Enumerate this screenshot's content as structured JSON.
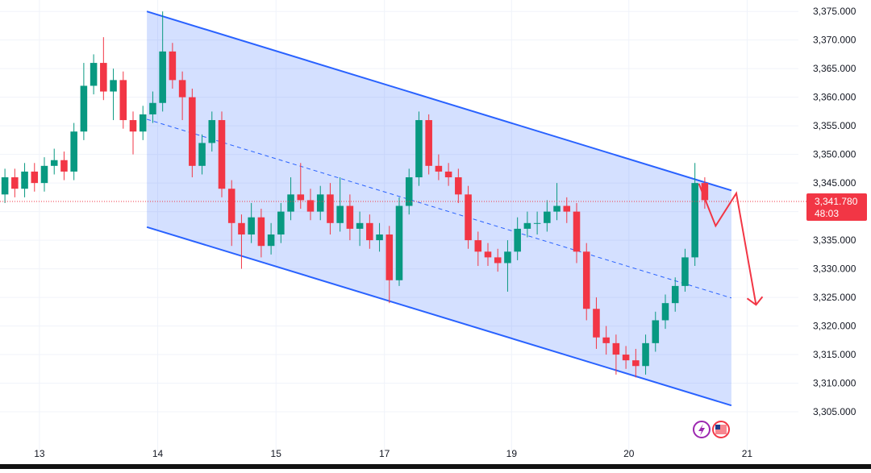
{
  "chart_data": {
    "type": "candlestick",
    "x": [
      0,
      1,
      2,
      3,
      4,
      5,
      6,
      7,
      8,
      9,
      10,
      11,
      12,
      13,
      14,
      15,
      16,
      17,
      18,
      19,
      20,
      21,
      22,
      23,
      24,
      25,
      26,
      27,
      28,
      29,
      30,
      31,
      32,
      33,
      34,
      35,
      36,
      37,
      38,
      39,
      40,
      41,
      42,
      43,
      44,
      45,
      46,
      47,
      48,
      49,
      50,
      51,
      52,
      53,
      54,
      55,
      56,
      57,
      58,
      59,
      60,
      61,
      62,
      63,
      64,
      65,
      66,
      67,
      68,
      69,
      70,
      71
    ],
    "open": [
      3343,
      3346,
      3344,
      3347,
      3345,
      3348,
      3349,
      3347,
      3354,
      3362,
      3366,
      3361,
      3363,
      3356,
      3354,
      3357,
      3359,
      3368,
      3363,
      3360,
      3348,
      3352,
      3356,
      3344,
      3338,
      3336,
      3339,
      3334,
      3336,
      3340,
      3343,
      3342,
      3340,
      3343,
      3338,
      3341,
      3337,
      3338,
      3335,
      3336,
      3328,
      3341,
      3346,
      3356,
      3348,
      3347,
      3346,
      3343,
      3335,
      3333,
      3332,
      3331,
      3333,
      3337,
      3338,
      3338,
      3340,
      3341,
      3340,
      3333,
      3323,
      3318,
      3317,
      3315,
      3314,
      3313,
      3317,
      3321,
      3324,
      3327,
      3332,
      3345
    ],
    "high": [
      3347.5,
      3347.5,
      3348.5,
      3348.5,
      3349.5,
      3351,
      3350.5,
      3355.5,
      3366,
      3367.5,
      3370.5,
      3365,
      3364.5,
      3357.5,
      3358.5,
      3361,
      3375,
      3369.5,
      3364.5,
      3361.5,
      3353.5,
      3357.5,
      3357.5,
      3345.5,
      3339.5,
      3341.5,
      3340.5,
      3338,
      3341.5,
      3346,
      3348.5,
      3344,
      3344.5,
      3345,
      3346,
      3343,
      3340,
      3339.5,
      3338,
      3337.5,
      3342.5,
      3347.5,
      3357.5,
      3357,
      3350,
      3348.5,
      3347.5,
      3344.5,
      3336.5,
      3334.5,
      3333.5,
      3335,
      3339,
      3340,
      3340,
      3342,
      3345,
      3342.5,
      3341.5,
      3334.5,
      3325,
      3320,
      3318.5,
      3316.5,
      3316,
      3318.5,
      3322.5,
      3325.5,
      3328.5,
      3333.5,
      3348.5,
      3346
    ],
    "low": [
      3341.5,
      3342.5,
      3342.5,
      3343.5,
      3343.5,
      3346.5,
      3345.5,
      3345.5,
      3352.5,
      3360.5,
      3359.5,
      3356,
      3354.5,
      3350,
      3352.5,
      3355.5,
      3357.5,
      3361.5,
      3356,
      3346,
      3346.5,
      3350.5,
      3342.5,
      3334,
      3330,
      3334.5,
      3332,
      3332.5,
      3334.5,
      3338.5,
      3340.5,
      3338.5,
      3338.5,
      3336,
      3336.5,
      3335,
      3334,
      3333.5,
      3333,
      3324,
      3327,
      3339.5,
      3344.5,
      3346.5,
      3345.5,
      3344.5,
      3341.5,
      3333.5,
      3330.5,
      3330.5,
      3329.5,
      3326,
      3331.5,
      3335.5,
      3336,
      3336.5,
      3338.5,
      3338,
      3331,
      3321,
      3316,
      3315,
      3311.5,
      3312.5,
      3311,
      3311.5,
      3315.5,
      3319.5,
      3322.5,
      3326,
      3330.5,
      3340.5
    ],
    "close": [
      3346,
      3344,
      3347,
      3345,
      3348,
      3349,
      3347,
      3354,
      3362,
      3366,
      3361,
      3363,
      3356,
      3354,
      3357,
      3359,
      3368,
      3363,
      3360,
      3348,
      3352,
      3356,
      3344,
      3338,
      3336,
      3339,
      3334,
      3336,
      3340,
      3343,
      3342,
      3340,
      3343,
      3338,
      3341,
      3337,
      3338,
      3335,
      3336,
      3328,
      3341,
      3346,
      3356,
      3348,
      3347,
      3346,
      3343,
      3335,
      3333,
      3332,
      3331,
      3333,
      3337,
      3338,
      3338,
      3340,
      3341,
      3340,
      3333,
      3323,
      3318,
      3317,
      3315,
      3314,
      3313,
      3317,
      3321,
      3324,
      3327,
      3332,
      3345,
      3342
    ],
    "up_color": "#089981",
    "down_color": "#f23645",
    "xlim": [
      -0.5,
      80.5
    ],
    "xticks": [
      {
        "value": 3.5,
        "label": "13"
      },
      {
        "value": 15.5,
        "label": "14"
      },
      {
        "value": 27.5,
        "label": "15"
      },
      {
        "value": 38.5,
        "label": "17"
      },
      {
        "value": 51.4,
        "label": "19"
      },
      {
        "value": 63.3,
        "label": "20"
      },
      {
        "value": 75.3,
        "label": "21"
      }
    ],
    "ylim": [
      3298.1,
      3377
    ],
    "yticks": [
      {
        "value": 3305,
        "label": "3,305.000"
      },
      {
        "value": 3310,
        "label": "3,310.000"
      },
      {
        "value": 3315,
        "label": "3,315.000"
      },
      {
        "value": 3320,
        "label": "3,320.000"
      },
      {
        "value": 3325,
        "label": "3,325.000"
      },
      {
        "value": 3330,
        "label": "3,330.000"
      },
      {
        "value": 3335,
        "label": "3,335.000"
      },
      {
        "value": 3340,
        "label": "3,340.000"
      },
      {
        "value": 3345,
        "label": "3,345.000"
      },
      {
        "value": 3350,
        "label": "3,350.000"
      },
      {
        "value": 3355,
        "label": "3,355.000"
      },
      {
        "value": 3360,
        "label": "3,360.000"
      },
      {
        "value": 3365,
        "label": "3,365.000"
      },
      {
        "value": 3370,
        "label": "3,370.000"
      },
      {
        "value": 3375,
        "label": "3,375.000"
      }
    ],
    "grid": true,
    "last_price": {
      "value": 3341.78,
      "label": "3,341.780"
    },
    "countdown": "48:03",
    "channel": {
      "x": [
        14.4,
        73.7
      ],
      "upper": [
        3375,
        3343.7
      ],
      "lower": [
        3337.3,
        3306.1
      ],
      "color": "#2962ff"
    },
    "projection": {
      "x": [
        70.4,
        72.1,
        74.2,
        76.2
      ],
      "y": [
        3344.9,
        3337.5,
        3343.2,
        3323.7
      ],
      "color": "#f23645"
    }
  }
}
